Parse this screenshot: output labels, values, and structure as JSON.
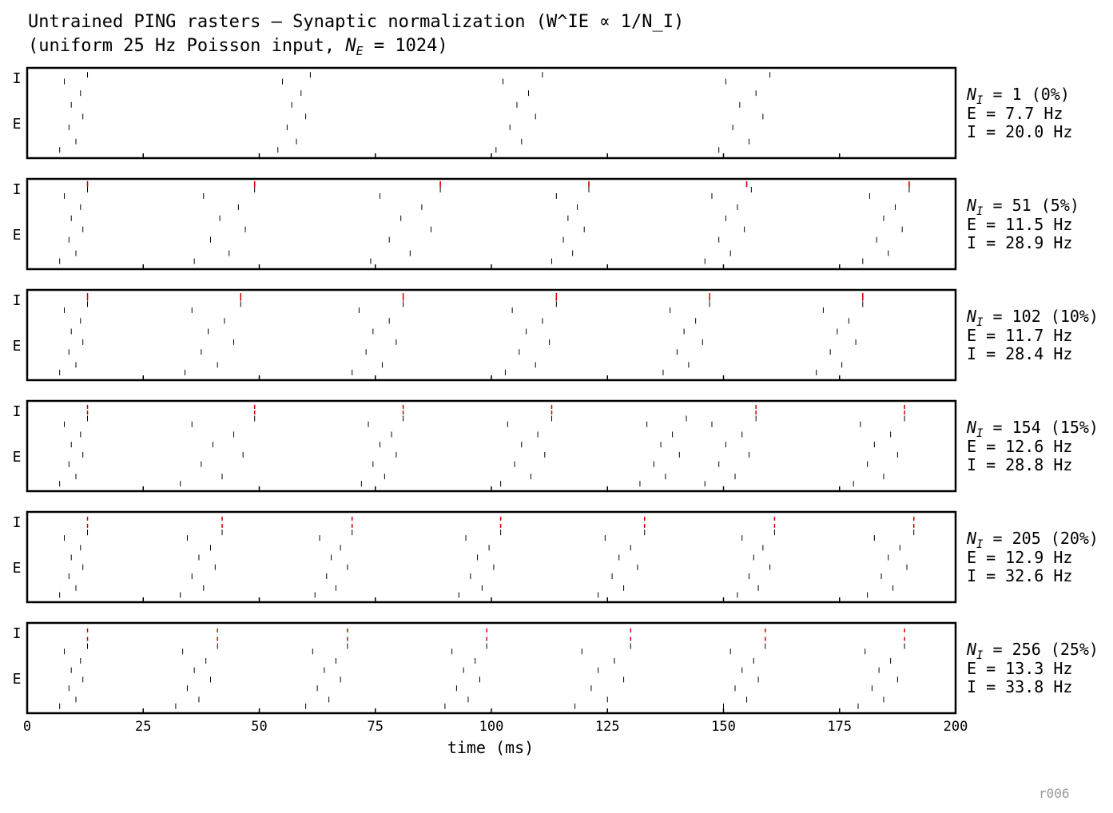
{
  "chart_data": {
    "type": "raster",
    "title": "Untrained PING rasters — Synaptic normalization (W^IE ∝ 1/N_I)",
    "subtitle": {
      "prefix": "(uniform 25 Hz Poisson input, ",
      "symbol": "N",
      "subscript": "E",
      "suffix": " = 1024)"
    },
    "xlabel": "time (ms)",
    "xlim": [
      0,
      200
    ],
    "xticks": [
      0,
      25,
      50,
      75,
      100,
      125,
      150,
      175,
      200
    ],
    "footer": "r006",
    "panels": [
      {
        "ylim": [
          0,
          1025
        ],
        "ylabels": [
          "I",
          "E"
        ],
        "label": {
          "symbol": "N",
          "subscript": "I",
          "text": " = 1 (0%)"
        },
        "stats": [
          "E = 7.7 Hz",
          "I = 20.0 Hz"
        ],
        "series": [
          {
            "color": "#000000",
            "x": [
              7,
              8,
              9,
              9.5,
              10.5,
              11.5,
              12,
              13,
              54,
              55,
              56,
              57,
              58,
              59,
              60,
              61,
              101,
              102.5,
              104,
              105.5,
              106.5,
              108,
              109.5,
              111,
              149,
              150.5,
              152,
              153.5,
              155.5,
              157,
              158.5,
              160
            ],
            "y": [
              80,
              900,
              350,
              620,
              180,
              760,
              480,
              980,
              80,
              900,
              350,
              620,
              180,
              760,
              480,
              980,
              80,
              900,
              350,
              620,
              180,
              760,
              480,
              980,
              80,
              900,
              350,
              620,
              180,
              760,
              480,
              980
            ]
          },
          {
            "color": "#cc0000",
            "x": [],
            "y": []
          }
        ]
      },
      {
        "ylim": [
          0,
          1075
        ],
        "ylabels": [
          "I",
          "E"
        ],
        "label": {
          "symbol": "N",
          "subscript": "I",
          "text": " = 51 (5%)"
        },
        "stats": [
          "E = 11.5 Hz",
          "I = 28.9 Hz"
        ],
        "series": [
          {
            "color": "#000000",
            "x": [
              7,
              8,
              9,
              9.5,
              10.5,
              11.5,
              12,
              13,
              36,
              38,
              39.5,
              41.5,
              43.5,
              45.5,
              47,
              49,
              74,
              76,
              78,
              80.5,
              82.5,
              85,
              87,
              89,
              113,
              114,
              115.5,
              116.5,
              117.5,
              118.5,
              120,
              121,
              146,
              147.5,
              149,
              150.5,
              151.5,
              153,
              154.5,
              156,
              180,
              181.5,
              183,
              184.5,
              185.5,
              187,
              188.5,
              190
            ],
            "y": [
              80,
              900,
              350,
              620,
              180,
              760,
              480,
              980,
              80,
              900,
              350,
              620,
              180,
              760,
              480,
              980,
              80,
              900,
              350,
              620,
              180,
              760,
              480,
              980,
              80,
              900,
              350,
              620,
              180,
              760,
              480,
              980,
              80,
              900,
              350,
              620,
              180,
              760,
              480,
              980,
              80,
              900,
              350,
              620,
              180,
              760,
              480,
              980
            ]
          },
          {
            "color": "#cc0000",
            "x": [
              13,
              13,
              49,
              49,
              89,
              89,
              121,
              121,
              155,
              155,
              190,
              190
            ],
            "y": [
              1037,
              1062,
              1037,
              1062,
              1037,
              1062,
              1037,
              1062,
              1037,
              1062,
              1037,
              1062
            ]
          }
        ]
      },
      {
        "ylim": [
          0,
          1126
        ],
        "ylabels": [
          "I",
          "E"
        ],
        "label": {
          "symbol": "N",
          "subscript": "I",
          "text": " = 102 (10%)"
        },
        "stats": [
          "E = 11.7 Hz",
          "I = 28.4 Hz"
        ],
        "series": [
          {
            "color": "#000000",
            "x": [
              7,
              8,
              9,
              9.5,
              10.5,
              11.5,
              12,
              13,
              34,
              35.5,
              37.5,
              39,
              41,
              42.5,
              44.5,
              46,
              70,
              71.5,
              73,
              74.5,
              76.5,
              78,
              79.5,
              81,
              103,
              104.5,
              106,
              107.5,
              109.5,
              111,
              112.5,
              114,
              137,
              138.5,
              140,
              141.5,
              142.5,
              144,
              145.5,
              147,
              170,
              171.5,
              173,
              174.5,
              175.5,
              177,
              178.5,
              180
            ],
            "y": [
              80,
              900,
              350,
              620,
              180,
              760,
              480,
              980,
              80,
              900,
              350,
              620,
              180,
              760,
              480,
              980,
              80,
              900,
              350,
              620,
              180,
              760,
              480,
              980,
              80,
              900,
              350,
              620,
              180,
              760,
              480,
              980,
              80,
              900,
              350,
              620,
              180,
              760,
              480,
              980,
              80,
              900,
              350,
              620,
              180,
              760,
              480,
              980
            ]
          },
          {
            "color": "#cc0000",
            "x": [
              13,
              13,
              46,
              46,
              81,
              81,
              114,
              114,
              147,
              147,
              180,
              180
            ],
            "y": [
              1050,
              1100,
              1050,
              1100,
              1050,
              1100,
              1050,
              1100,
              1050,
              1100,
              1050,
              1100
            ]
          }
        ]
      },
      {
        "ylim": [
          0,
          1178
        ],
        "ylabels": [
          "I",
          "E"
        ],
        "label": {
          "symbol": "N",
          "subscript": "I",
          "text": " = 154 (15%)"
        },
        "stats": [
          "E = 12.6 Hz",
          "I = 28.8 Hz"
        ],
        "series": [
          {
            "color": "#000000",
            "x": [
              7,
              8,
              9,
              9.5,
              10.5,
              11.5,
              12,
              13,
              33,
              35.5,
              37.5,
              40,
              42,
              44.5,
              46.5,
              49,
              72,
              73.5,
              74.5,
              76,
              77,
              78.5,
              79.5,
              81,
              102,
              103.5,
              105,
              106.5,
              108.5,
              110,
              111.5,
              113,
              132,
              133.5,
              135,
              136.5,
              137.5,
              139,
              140.5,
              142,
              146,
              147.5,
              149,
              150.5,
              152.5,
              154,
              155.5,
              157,
              178,
              179.5,
              181,
              182.5,
              184.5,
              186,
              187.5,
              189
            ],
            "y": [
              80,
              900,
              350,
              620,
              180,
              760,
              480,
              980,
              80,
              900,
              350,
              620,
              180,
              760,
              480,
              980,
              80,
              900,
              350,
              620,
              180,
              760,
              480,
              980,
              80,
              900,
              350,
              620,
              180,
              760,
              480,
              980,
              80,
              900,
              350,
              620,
              180,
              760,
              480,
              980,
              80,
              900,
              350,
              620,
              180,
              760,
              480,
              980,
              80,
              900,
              350,
              620,
              180,
              760,
              480,
              980
            ]
          },
          {
            "color": "#cc0000",
            "x": [
              13,
              13,
              49,
              49,
              81,
              81,
              113,
              113,
              157,
              157,
              189,
              189
            ],
            "y": [
              1062,
              1140,
              1062,
              1140,
              1062,
              1140,
              1062,
              1140,
              1062,
              1140,
              1062,
              1140
            ]
          }
        ]
      },
      {
        "ylim": [
          0,
          1229
        ],
        "ylabels": [
          "I",
          "E"
        ],
        "label": {
          "symbol": "N",
          "subscript": "I",
          "text": " = 205 (20%)"
        },
        "stats": [
          "E = 12.9 Hz",
          "I = 32.6 Hz"
        ],
        "series": [
          {
            "color": "#000000",
            "x": [
              7,
              8,
              9,
              9.5,
              10.5,
              11.5,
              12,
              13,
              33,
              34.5,
              35.5,
              37,
              38,
              39.5,
              40.5,
              42,
              62,
              63,
              64.5,
              65.5,
              66.5,
              67.5,
              69,
              70,
              93,
              94.5,
              95.5,
              97,
              98,
              99.5,
              100.5,
              102,
              123,
              124.5,
              126,
              127.5,
              128.5,
              130,
              131.5,
              133,
              153,
              154,
              155.5,
              156.5,
              157.5,
              158.5,
              160,
              161,
              181,
              182.5,
              184,
              185.5,
              186.5,
              188,
              189.5,
              191
            ],
            "y": [
              80,
              900,
              350,
              620,
              180,
              760,
              480,
              980,
              80,
              900,
              350,
              620,
              180,
              760,
              480,
              980,
              80,
              900,
              350,
              620,
              180,
              760,
              480,
              980,
              80,
              900,
              350,
              620,
              180,
              760,
              480,
              980,
              80,
              900,
              350,
              620,
              180,
              760,
              480,
              980,
              80,
              900,
              350,
              620,
              180,
              760,
              480,
              980,
              80,
              900,
              350,
              620,
              180,
              760,
              480,
              980
            ]
          },
          {
            "color": "#cc0000",
            "x": [
              13,
              13,
              42,
              42,
              70,
              70,
              102,
              102,
              133,
              133,
              161,
              161,
              191,
              191
            ],
            "y": [
              1075,
              1178,
              1075,
              1178,
              1075,
              1178,
              1075,
              1178,
              1075,
              1178,
              1075,
              1178,
              1075,
              1178
            ]
          }
        ]
      },
      {
        "ylim": [
          0,
          1280
        ],
        "ylabels": [
          "I",
          "E"
        ],
        "label": {
          "symbol": "N",
          "subscript": "I",
          "text": " = 256 (25%)"
        },
        "stats": [
          "E = 13.3 Hz",
          "I = 33.8 Hz"
        ],
        "series": [
          {
            "color": "#000000",
            "x": [
              7,
              8,
              9,
              9.5,
              10.5,
              11.5,
              12,
              13,
              32,
              33.5,
              34.5,
              36,
              37,
              38.5,
              39.5,
              41,
              60,
              61.5,
              62.5,
              64,
              65,
              66.5,
              67.5,
              69,
              90,
              91.5,
              92.5,
              94,
              95,
              96.5,
              97.5,
              99,
              118,
              119.5,
              121.5,
              123,
              125,
              126.5,
              128.5,
              130,
              150,
              151.5,
              152.5,
              154,
              155,
              156.5,
              157.5,
              159,
              179,
              180.5,
              182,
              183.5,
              184.5,
              186,
              187.5,
              189
            ],
            "y": [
              80,
              900,
              350,
              620,
              180,
              760,
              480,
              980,
              80,
              900,
              350,
              620,
              180,
              760,
              480,
              980,
              80,
              900,
              350,
              620,
              180,
              760,
              480,
              980,
              80,
              900,
              350,
              620,
              180,
              760,
              480,
              980,
              80,
              900,
              350,
              620,
              180,
              760,
              480,
              980,
              80,
              900,
              350,
              620,
              180,
              760,
              480,
              980,
              80,
              900,
              350,
              620,
              180,
              760,
              480,
              980
            ]
          },
          {
            "color": "#cc0000",
            "x": [
              13,
              13,
              41,
              41,
              69,
              69,
              99,
              99,
              130,
              130,
              159,
              159,
              189,
              189
            ],
            "y": [
              1088,
              1216,
              1088,
              1216,
              1088,
              1216,
              1088,
              1216,
              1088,
              1216,
              1088,
              1216,
              1088,
              1216
            ]
          }
        ]
      }
    ]
  }
}
